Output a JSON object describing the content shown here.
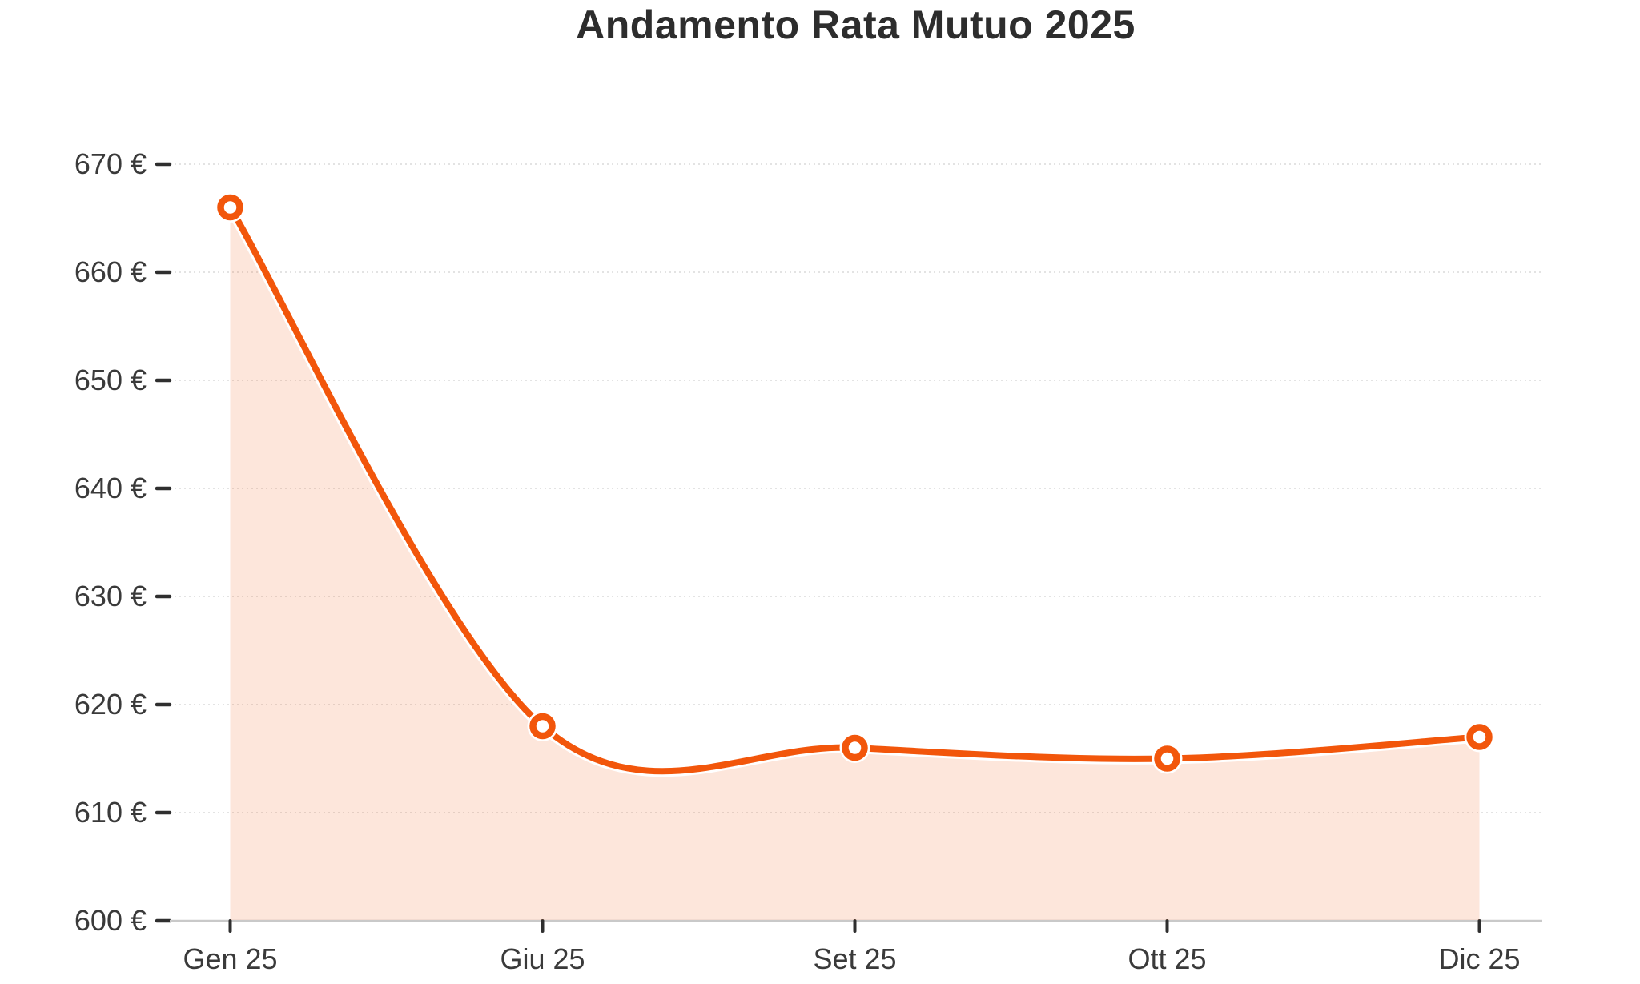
{
  "chart_data": {
    "type": "area",
    "title": "Andamento Rata Mutuo 2025",
    "categories": [
      "Gen 25",
      "Giu 25",
      "Set 25",
      "Ott 25",
      "Dic 25"
    ],
    "values": [
      666,
      618,
      616,
      615,
      617
    ],
    "unit": "€",
    "xlabel": "",
    "ylabel": "",
    "ylim": [
      600,
      670
    ],
    "y_ticks": [
      600,
      610,
      620,
      630,
      640,
      650,
      660,
      670
    ],
    "y_tick_labels": [
      "600 €",
      "610 €",
      "620 €",
      "630 €",
      "640 €",
      "650 €",
      "660 €",
      "670 €"
    ],
    "grid": "horizontal-dotted",
    "legend": "none",
    "curve": "smooth-catmull-rom",
    "marker_style": "open-circle",
    "colors": {
      "line": "#F2560B",
      "area_fill": "rgba(242, 86, 11, 0.15)",
      "marker_fill": "#FFFFFF",
      "halo": "#FFFFFF",
      "grid": "#E3E3E3",
      "axis_line": "#C9C9C9",
      "tick": "#2F2F2F",
      "tick_label": "#3A3A3A",
      "title": "#2D2D2D"
    }
  }
}
